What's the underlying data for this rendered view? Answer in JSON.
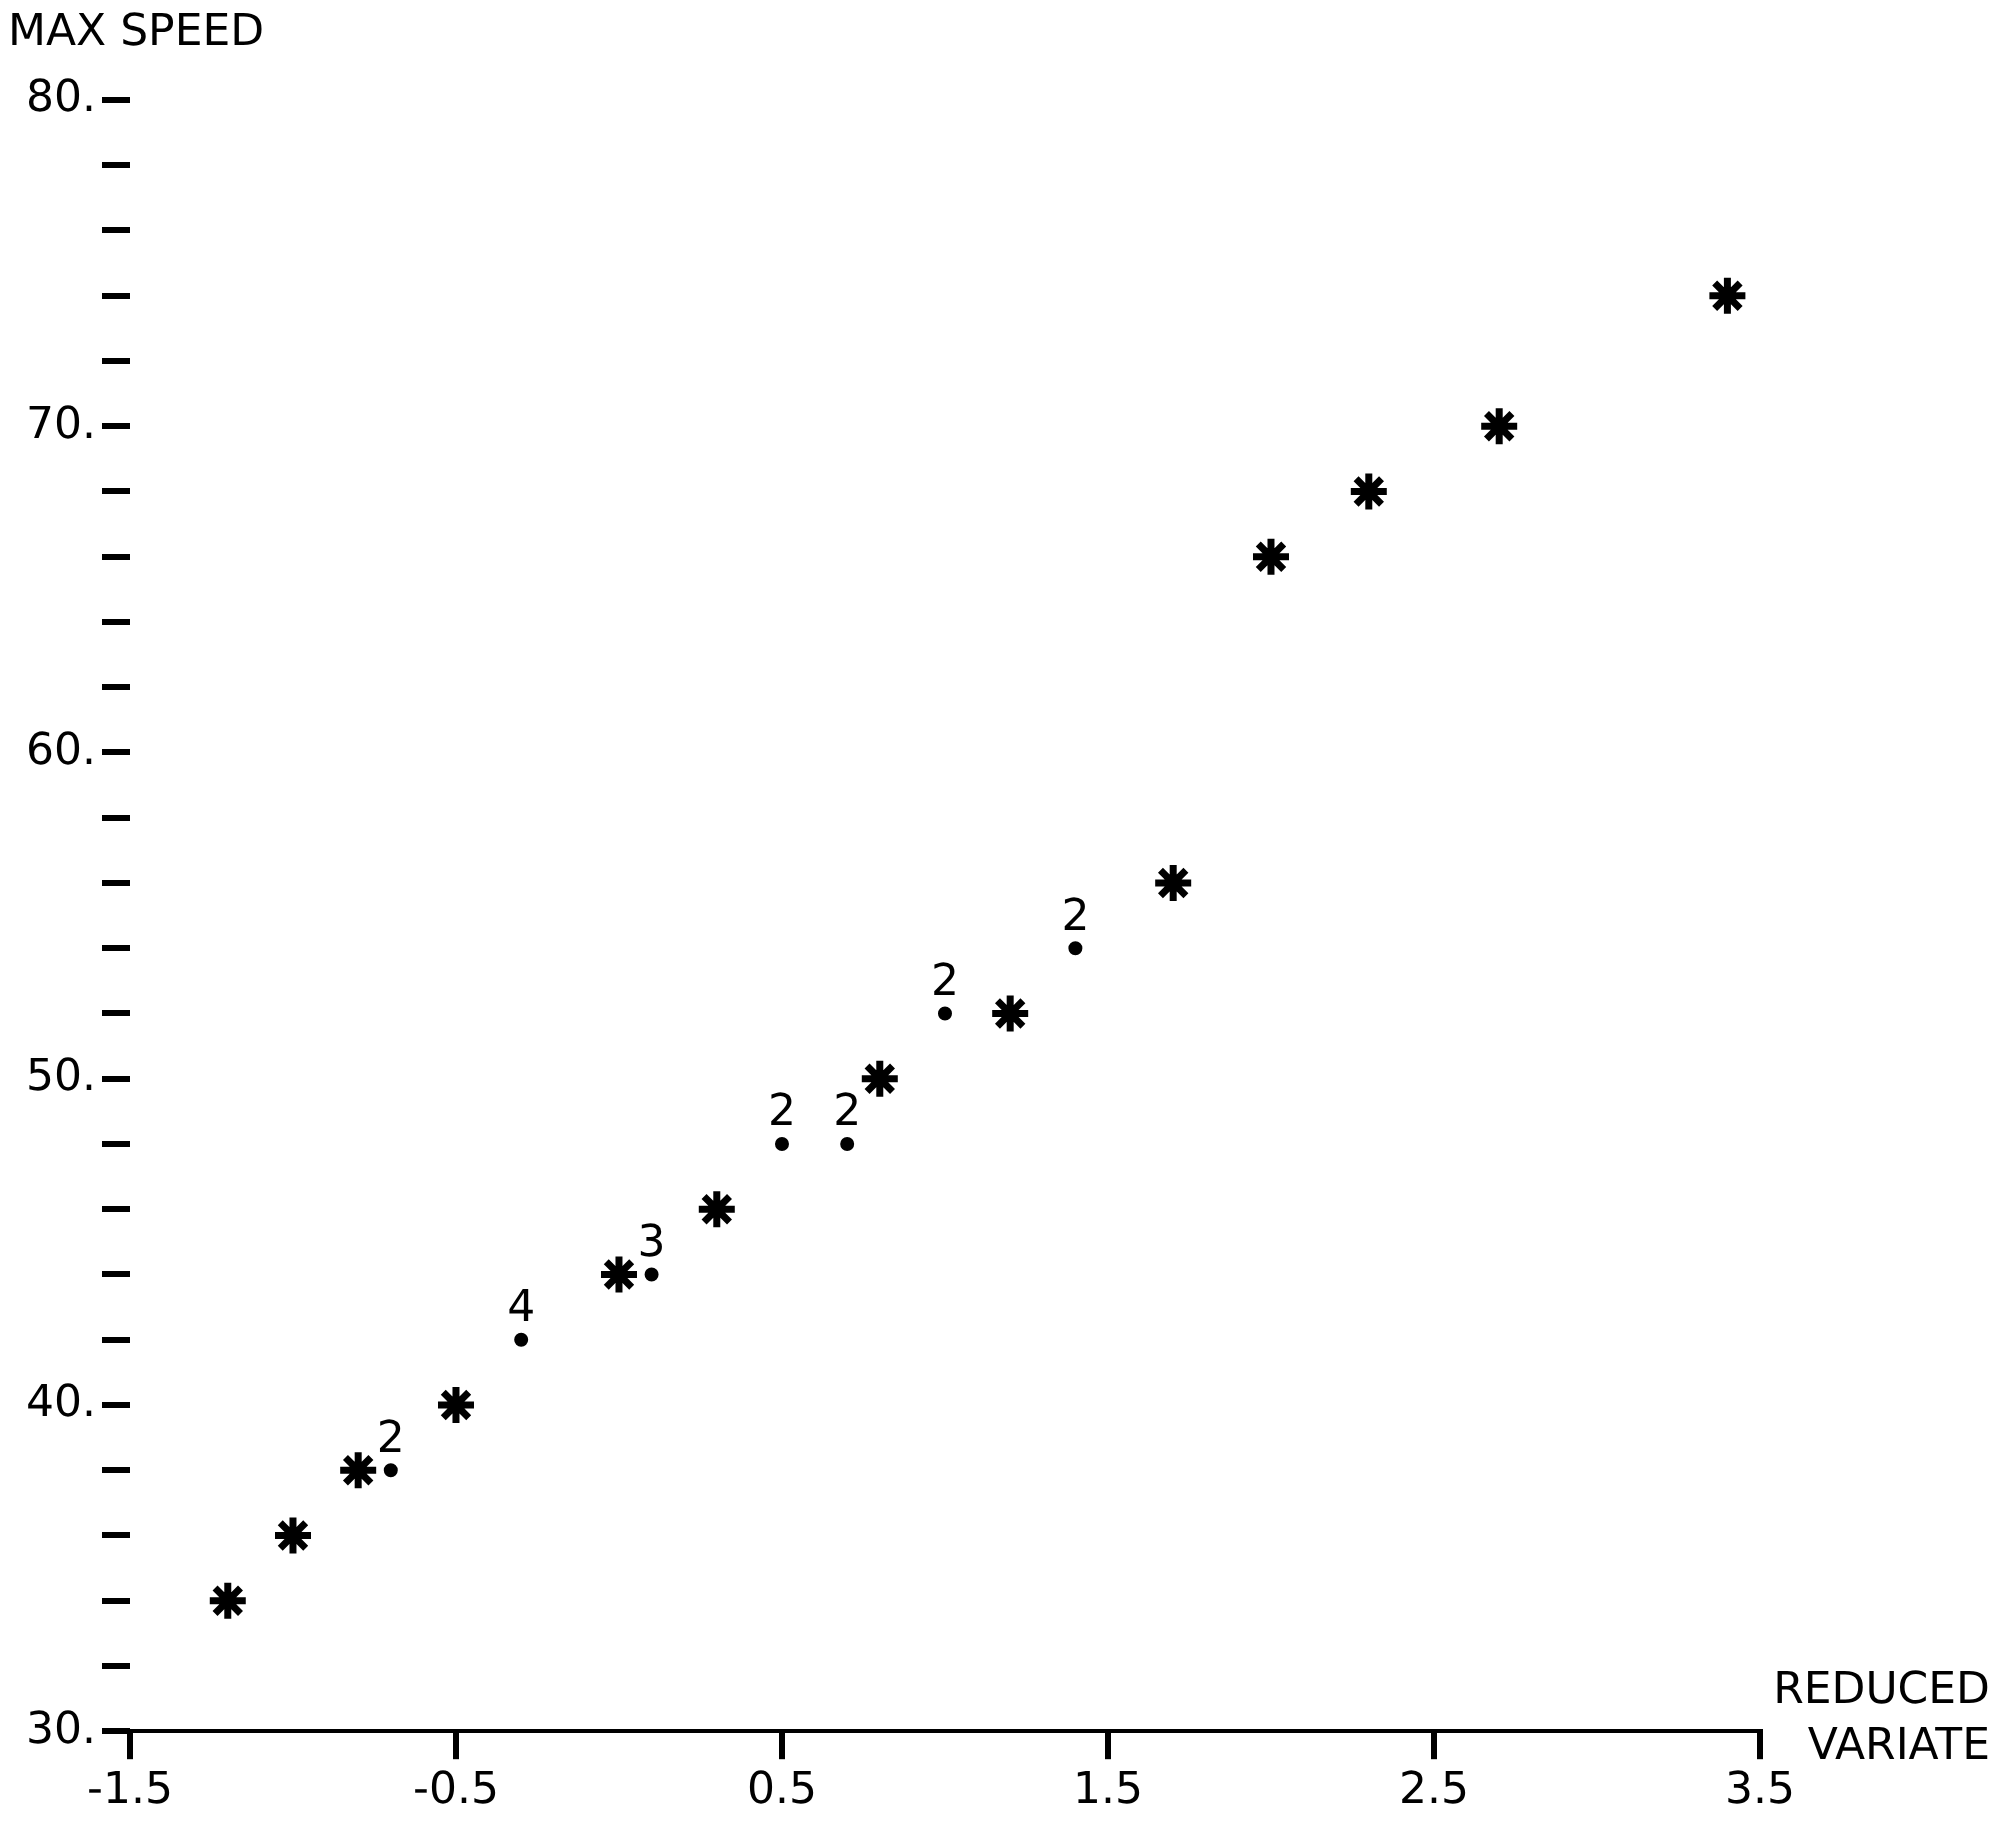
{
  "chart_data": {
    "type": "scatter",
    "xlabel": "REDUCED VARIATE",
    "ylabel": "MAX SPEED",
    "series": [
      {
        "color": "#000000",
        "x": [
          -1.2,
          -1.0,
          -0.8,
          -0.5,
          0.0,
          0.3,
          0.8,
          1.2,
          1.7,
          2.0,
          2.3,
          2.7,
          3.4
        ],
        "values": [
          34,
          36,
          38,
          40,
          44,
          46,
          50,
          52,
          56,
          66,
          68,
          70,
          74
        ]
      },
      {
        "color": "#000000",
        "marker": "circle",
        "x": [
          -0.7,
          -0.3,
          0.1,
          0.5,
          0.7,
          1.0,
          1.4
        ],
        "values": [
          38,
          42,
          44,
          48,
          48,
          52,
          54
        ]
      }
    ],
    "annotations": [
      {
        "text": "2",
        "x": -0.7,
        "y": 38
      },
      {
        "text": "4",
        "x": -0.3,
        "y": 42
      },
      {
        "text": "3",
        "x": 0.1,
        "y": 44
      },
      {
        "text": "2",
        "x": 0.5,
        "y": 48
      },
      {
        "text": "2",
        "x": 0.7,
        "y": 48
      },
      {
        "text": "2",
        "x": 1.0,
        "y": 52
      },
      {
        "text": "2",
        "x": 1.4,
        "y": 54
      }
    ],
    "xlim": [
      -1.5,
      3.5
    ],
    "xticks": [
      -1.5,
      -0.5,
      0.5,
      1.5,
      2.5,
      3.5
    ],
    "ylim": [
      30,
      80
    ],
    "yticks": [
      {
        "value": 30,
        "label": "30."
      },
      {
        "value": 32,
        "label": null
      },
      {
        "value": 34,
        "label": null
      },
      {
        "value": 36,
        "label": null
      },
      {
        "value": 38,
        "label": null
      },
      {
        "value": 40,
        "label": "40."
      },
      {
        "value": 42,
        "label": null
      },
      {
        "value": 44,
        "label": null
      },
      {
        "value": 46,
        "label": null
      },
      {
        "value": 48,
        "label": null
      },
      {
        "value": 50,
        "label": "50."
      },
      {
        "value": 52,
        "label": null
      },
      {
        "value": 54,
        "label": null
      },
      {
        "value": 56,
        "label": null
      },
      {
        "value": 58,
        "label": null
      },
      {
        "value": 60,
        "label": "60."
      },
      {
        "value": 62,
        "label": null
      },
      {
        "value": 64,
        "label": null
      },
      {
        "value": 66,
        "label": null
      },
      {
        "value": 68,
        "label": null
      },
      {
        "value": 70,
        "label": "70."
      },
      {
        "value": 72,
        "label": null
      },
      {
        "value": 74,
        "label": null
      },
      {
        "value": 76,
        "label": null
      },
      {
        "value": 78,
        "label": null
      },
      {
        "value": 80,
        "label": "80."
      }
    ],
    "grid": false,
    "legend": false,
    "marker": "cross"
  }
}
